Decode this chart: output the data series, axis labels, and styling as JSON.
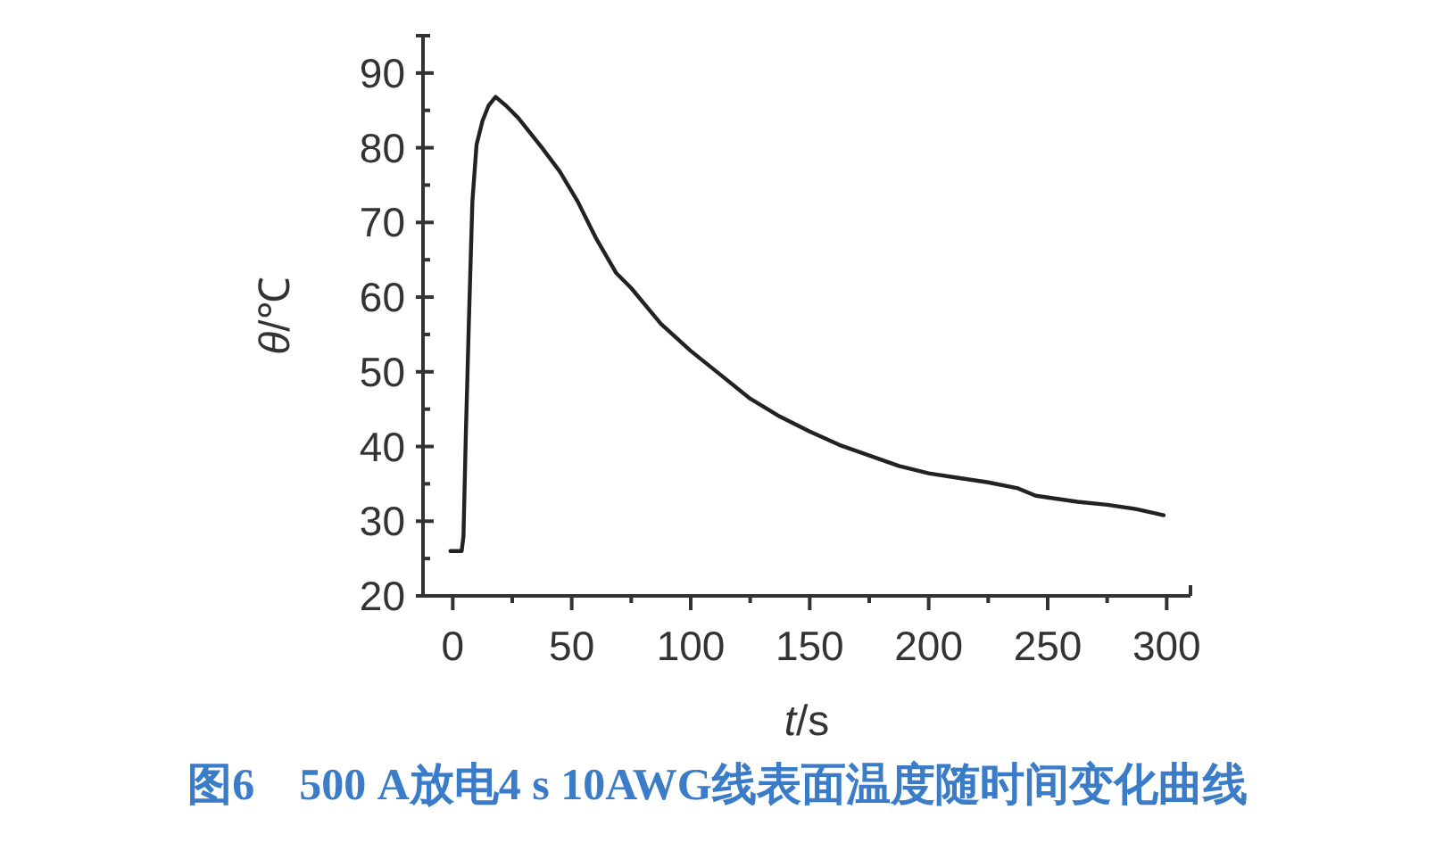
{
  "chart_data": {
    "type": "line",
    "title": "图6　500 A放电4 s 10AWG线表面温度随时间变化曲线",
    "xlabel": "*t*/s",
    "ylabel": "*θ*/℃",
    "xlim": [
      -12.5,
      310
    ],
    "ylim": [
      20,
      95
    ],
    "xticks": [
      0,
      50,
      100,
      150,
      200,
      250,
      300
    ],
    "yticks": [
      20,
      {
        "value": 25,
        "label": null
      },
      30,
      {
        "value": 35,
        "label": null
      },
      40,
      {
        "value": 45,
        "label": null
      },
      50,
      {
        "value": 55,
        "label": null
      },
      60,
      {
        "value": 65,
        "label": null
      },
      70,
      {
        "value": 75,
        "label": null
      },
      80,
      {
        "value": 85,
        "label": null
      },
      90
    ],
    "grid": false,
    "marker": "none",
    "line_style": "solid",
    "x": [
      -1,
      3.75,
      4.5,
      5.5,
      6.75,
      8.25,
      10,
      12.5,
      15,
      18,
      22.5,
      27.5,
      37.5,
      45,
      52.5,
      60,
      68.75,
      75,
      87.5,
      100,
      112.5,
      125,
      137.5,
      150,
      162.5,
      175,
      187.5,
      200,
      212.5,
      225,
      237.5,
      245,
      262.5,
      275,
      287.5,
      298.75
    ],
    "series": [
      {
        "color": "#222222",
        "values": [
          26,
          26,
          28,
          41.6,
          56.4,
          72.8,
          80.4,
          83.6,
          85.6,
          86.8,
          85.6,
          84,
          80,
          76.8,
          72.8,
          68,
          63.2,
          61.2,
          56.4,
          52.8,
          49.6,
          46.4,
          44,
          42,
          40.2,
          38.8,
          37.4,
          36.4,
          35.8,
          35.2,
          34.4,
          33.4,
          32.6,
          32.2,
          31.6,
          30.8
        ]
      }
    ]
  }
}
